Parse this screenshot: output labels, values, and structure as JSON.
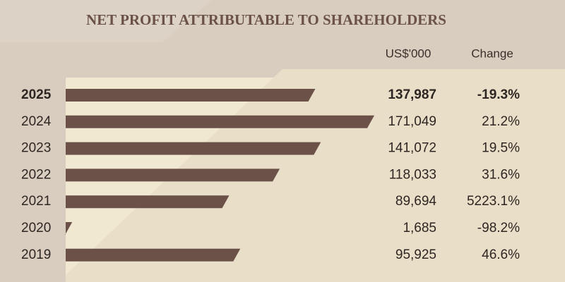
{
  "chart_data": {
    "type": "bar",
    "orientation": "horizontal",
    "title": "NET PROFIT ATTRIBUTABLE TO SHAREHOLDERS",
    "value_header": "US$'000",
    "change_header": "Change",
    "categories": [
      "2025",
      "2024",
      "2023",
      "2022",
      "2021",
      "2020",
      "2019"
    ],
    "values": [
      137987,
      171049,
      141072,
      118033,
      89694,
      1685,
      95925
    ],
    "value_labels": [
      "137,987",
      "171,049",
      "141,072",
      "118,033",
      "89,694",
      "1,685",
      "95,925"
    ],
    "changes": [
      "-19.3%",
      "21.2%",
      "19.5%",
      "31.6%",
      "5223.1%",
      "-98.2%",
      "46.6%"
    ],
    "color": "#6b5148"
  }
}
